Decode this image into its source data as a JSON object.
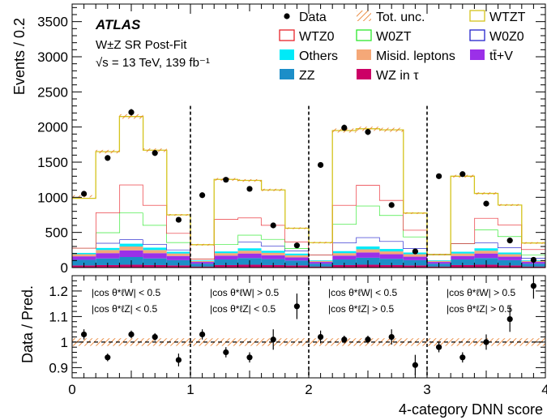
{
  "chart_data": {
    "type": "bar",
    "stacked": true,
    "experiment": "ATLAS",
    "region_label": "W±Z SR Post-Fit",
    "energy_label": "√s = 13 TeV, 139 fb⁻¹",
    "ylabel": "Events / 0.2",
    "xlabel": "4-category DNN score",
    "ylim": [
      0,
      3750
    ],
    "yticks": [
      0,
      500,
      1000,
      1500,
      2000,
      2500,
      3000,
      3500
    ],
    "xlim": [
      0,
      4
    ],
    "xticks": [
      0,
      1,
      2,
      3,
      4
    ],
    "bin_edges": [
      0,
      0.2,
      0.4,
      0.6,
      0.8,
      1.0,
      1.2,
      1.4,
      1.6,
      1.8,
      2.0,
      2.2,
      2.4,
      2.6,
      2.8,
      3.0,
      3.2,
      3.4,
      3.6,
      3.8,
      4.0
    ],
    "region_dividers": [
      1,
      2,
      3
    ],
    "legend_placement": "top",
    "legend": [
      {
        "name": "Data",
        "kind": "marker",
        "color": "#000000"
      },
      {
        "name": "Tot. unc.",
        "kind": "hatch",
        "color": "#e8771f"
      },
      {
        "name": "WTZT",
        "kind": "line",
        "color": "#d4c41c"
      },
      {
        "name": "WTZ0",
        "kind": "line",
        "color": "#e8232a"
      },
      {
        "name": "W0ZT",
        "kind": "line",
        "color": "#2ce82c"
      },
      {
        "name": "W0Z0",
        "kind": "line",
        "color": "#2222cc"
      },
      {
        "name": "Others",
        "kind": "fill",
        "color": "#00eaf8"
      },
      {
        "name": "Misid. leptons",
        "kind": "fill",
        "color": "#f5a878"
      },
      {
        "name": "tt̄+V",
        "kind": "fill",
        "color": "#9b30e8"
      },
      {
        "name": "ZZ",
        "kind": "fill",
        "color": "#1c8ec8"
      },
      {
        "name": "WZ in τ",
        "kind": "fill",
        "color": "#cc0066"
      }
    ],
    "stack_series": [
      {
        "name": "WZ in τ",
        "color": "#cc0066",
        "values": [
          30,
          35,
          40,
          35,
          30,
          15,
          35,
          40,
          35,
          30,
          15,
          35,
          40,
          35,
          30,
          15,
          35,
          40,
          30,
          15
        ]
      },
      {
        "name": "ZZ",
        "color": "#1c8ec8",
        "values": [
          80,
          95,
          110,
          95,
          75,
          40,
          80,
          95,
          85,
          70,
          40,
          80,
          100,
          90,
          75,
          40,
          80,
          95,
          75,
          40
        ]
      },
      {
        "name": "tt̄+V",
        "color": "#9b30e8",
        "values": [
          50,
          75,
          95,
          75,
          60,
          25,
          55,
          65,
          55,
          45,
          25,
          55,
          75,
          65,
          50,
          25,
          50,
          65,
          50,
          25
        ]
      },
      {
        "name": "Misid. leptons",
        "color": "#f5a878",
        "values": [
          30,
          45,
          55,
          45,
          35,
          15,
          35,
          40,
          35,
          30,
          15,
          35,
          45,
          40,
          35,
          15,
          35,
          40,
          35,
          15
        ]
      },
      {
        "name": "Others",
        "color": "#00eaf8",
        "values": [
          20,
          30,
          40,
          35,
          25,
          10,
          25,
          35,
          30,
          25,
          10,
          30,
          40,
          35,
          25,
          10,
          25,
          35,
          25,
          10
        ]
      },
      {
        "name": "W0Z0",
        "color": "#2222cc",
        "values": [
          70,
          70,
          60,
          50,
          30,
          20,
          100,
          90,
          70,
          40,
          80,
          120,
          130,
          110,
          60,
          80,
          120,
          80,
          70,
          30
        ]
      },
      {
        "name": "W0ZT",
        "color": "#2ce82c",
        "values": [
          0,
          150,
          380,
          270,
          105,
          0,
          0,
          100,
          95,
          35,
          0,
          265,
          450,
          370,
          165,
          0,
          0,
          185,
          160,
          45
        ]
      },
      {
        "name": "WTZ0",
        "color": "#e8232a",
        "values": [
          0,
          285,
          400,
          285,
          130,
          0,
          360,
          245,
          200,
          95,
          0,
          270,
          295,
          215,
          95,
          0,
          0,
          165,
          165,
          80
        ]
      },
      {
        "name": "WTZT",
        "color": "#d4c41c",
        "values": [
          705,
          865,
          970,
          780,
          260,
          200,
          565,
          530,
          500,
          190,
          170,
          1060,
          800,
          1000,
          240,
          0,
          955,
          350,
          280,
          90
        ]
      }
    ],
    "stack_totals": [
      1015,
      1650,
      2150,
      1670,
      750,
      325,
      1255,
      1240,
      1105,
      560,
      355,
      1950,
      1975,
      1960,
      775,
      185,
      1300,
      1055,
      890,
      350
    ],
    "data_points": [
      1050,
      1560,
      2210,
      1630,
      680,
      null,
      1030,
      1250,
      1120,
      600,
      315,
      1460,
      1990,
      1930,
      890,
      230,
      1300,
      1330,
      910,
      385,
      110
    ],
    "data_x": [
      0.1,
      0.3,
      0.5,
      0.7,
      0.9,
      null,
      1.1,
      1.3,
      1.5,
      1.7,
      1.9,
      2.1,
      2.3,
      2.5,
      2.7,
      2.9,
      3.1,
      3.3,
      3.5,
      3.7,
      3.9
    ],
    "ratio": {
      "ylabel": "Data / Pred.",
      "ylim": [
        0.86,
        1.26
      ],
      "yticks": [
        0.9,
        1,
        1.1,
        1.2
      ],
      "x": [
        0.1,
        0.3,
        0.5,
        0.7,
        0.9,
        1.1,
        1.3,
        1.5,
        1.7,
        1.9,
        2.1,
        2.3,
        2.5,
        2.7,
        2.9,
        3.1,
        3.3,
        3.5,
        3.7,
        3.9
      ],
      "values": [
        1.03,
        0.94,
        1.03,
        1.02,
        0.93,
        1.03,
        0.96,
        0.94,
        1.01,
        1.14,
        1.02,
        1.01,
        1.01,
        1.02,
        0.91,
        0.98,
        0.94,
        1.0,
        1.09,
        1.22
      ],
      "errors": [
        0.02,
        0.015,
        0.015,
        0.015,
        0.025,
        0.02,
        0.02,
        0.02,
        0.04,
        0.05,
        0.025,
        0.015,
        0.015,
        0.03,
        0.04,
        0.02,
        0.02,
        0.03,
        0.05,
        0.05
      ],
      "unc_band": 0.015
    },
    "region_labels": [
      [
        "|cos θ*ℓW| < 0.5",
        "|cos θ*ℓZ| < 0.5"
      ],
      [
        "|cos θ*ℓW| > 0.5",
        "|cos θ*ℓZ| < 0.5"
      ],
      [
        "|cos θ*ℓW| < 0.5",
        "|cos θ*ℓZ| > 0.5"
      ],
      [
        "|cos θ*ℓW| > 0.5",
        "|cos θ*ℓZ| > 0.5"
      ]
    ]
  }
}
